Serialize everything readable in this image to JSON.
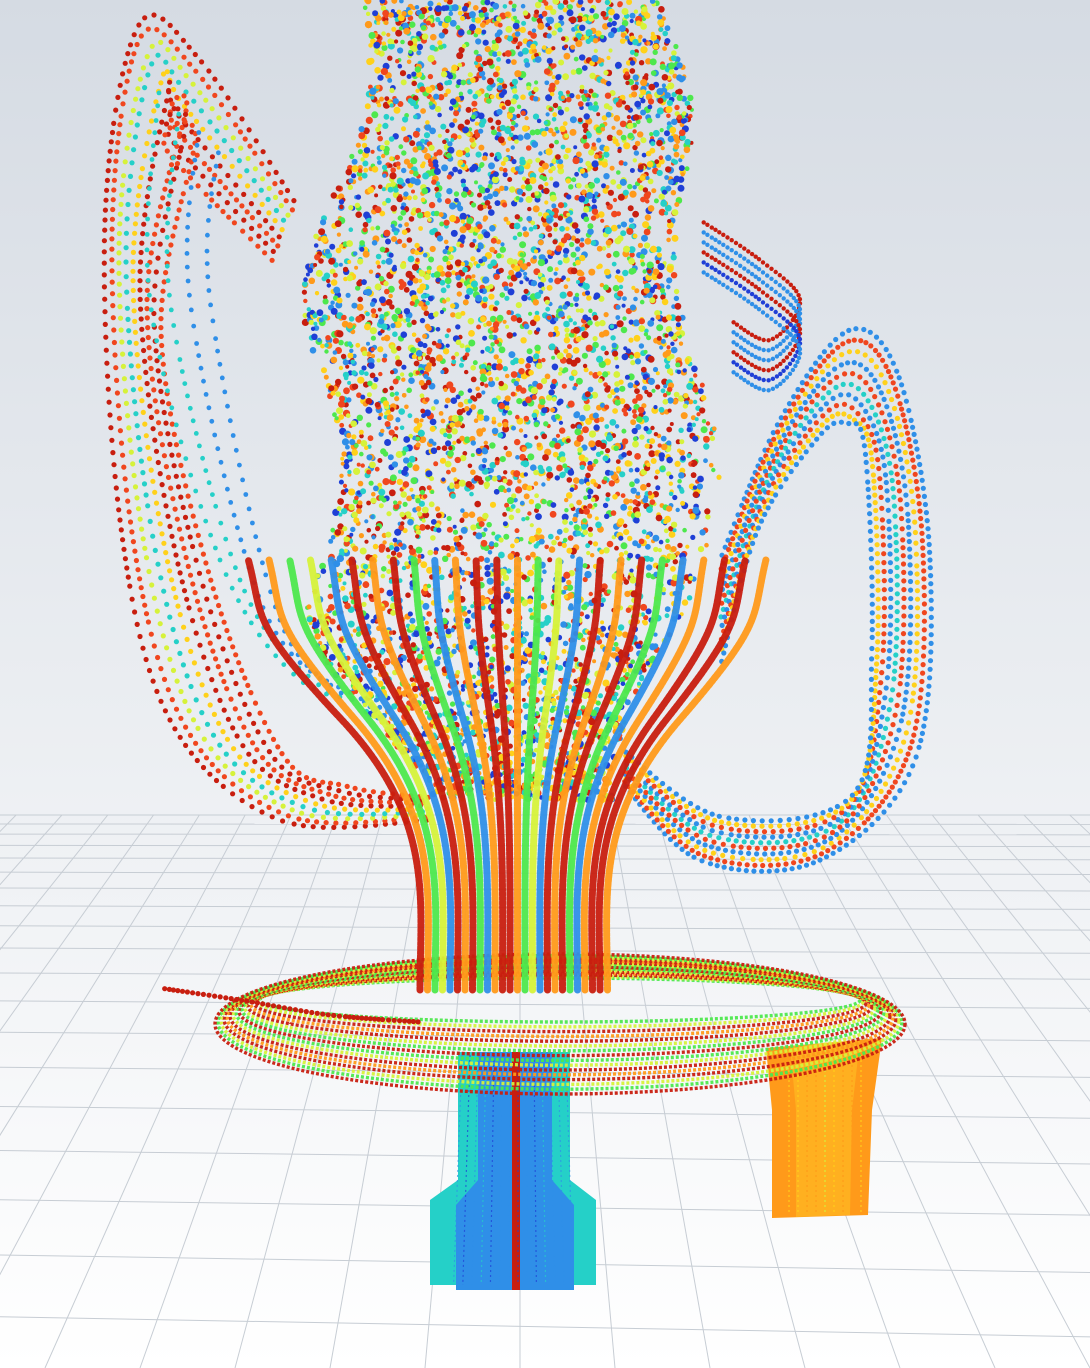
{
  "scene": {
    "kind": "particle-trace-visualization",
    "colors": {
      "background_top": "#d5dbe3",
      "background_bottom": "#ffffff",
      "floor_grid": "#c7cdd4",
      "colormap": [
        "#1f3fd6",
        "#2f8fe8",
        "#25d0c8",
        "#4de84d",
        "#d6f23a",
        "#ffd11a",
        "#ff9a1a",
        "#f0461e",
        "#c81e0f"
      ]
    },
    "objects": [
      {
        "name": "central-jet-plume",
        "dominant_colors": [
          "#c81e0f",
          "#ff9a1a",
          "#4de84d",
          "#2f8fe8"
        ]
      },
      {
        "name": "disc-plate",
        "dominant_colors": [
          "#c81e0f",
          "#d6f23a",
          "#4de84d"
        ]
      },
      {
        "name": "inlet-pipe-center",
        "dominant_colors": [
          "#25d0c8",
          "#2f8fe8",
          "#c81e0f"
        ]
      },
      {
        "name": "inlet-pipe-right",
        "dominant_colors": [
          "#ff9a1a",
          "#ffb020"
        ]
      },
      {
        "name": "left-recirculation-loops",
        "dominant_colors": [
          "#c81e0f",
          "#f0461e",
          "#d6f23a",
          "#25d0c8"
        ]
      },
      {
        "name": "right-recirculation-loops",
        "dominant_colors": [
          "#2f8fe8",
          "#f0461e",
          "#ffd11a"
        ]
      }
    ]
  }
}
